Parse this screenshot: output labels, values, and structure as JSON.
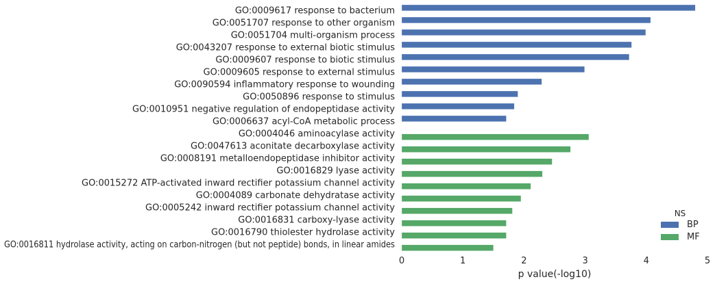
{
  "chart_data": {
    "type": "bar",
    "orientation": "horizontal",
    "categories": [
      "GO:0009617 response to bacterium",
      "GO:0051707 response to other organism",
      "GO:0051704 multi-organism process",
      "GO:0043207 response to external biotic stimulus",
      "GO:0009607 response to biotic stimulus",
      "GO:0009605 response to external stimulus",
      "GO:0090594 inflammatory response to wounding",
      "GO:0050896 response to stimulus",
      "GO:0010951 negative regulation of endopeptidase activity",
      "GO:0006637 acyl-CoA metabolic process",
      "GO:0004046 aminoacylase activity",
      "GO:0047613 aconitate decarboxylase activity",
      "GO:0008191 metalloendopeptidase inhibitor activity",
      "GO:0016829 lyase activity",
      "GO:0015272 ATP-activated inward rectifier potassium channel activity",
      "GO:0004089 carbonate dehydratase activity",
      "GO:0005242 inward rectifier potassium channel activity",
      "GO:0016831 carboxy-lyase activity",
      "GO:0016790 thiolester hydrolase activity",
      "GO:0016811 hydrolase activity, acting on carbon-nitrogen (but not peptide) bonds, in linear amides"
    ],
    "values": [
      4.8,
      4.07,
      3.99,
      3.76,
      3.72,
      2.99,
      2.29,
      1.9,
      1.84,
      1.71,
      3.06,
      2.76,
      2.46,
      2.3,
      2.11,
      1.95,
      1.81,
      1.71,
      1.71,
      1.5
    ],
    "groups": [
      "BP",
      "BP",
      "BP",
      "BP",
      "BP",
      "BP",
      "BP",
      "BP",
      "BP",
      "BP",
      "MF",
      "MF",
      "MF",
      "MF",
      "MF",
      "MF",
      "MF",
      "MF",
      "MF",
      "MF"
    ],
    "series": [
      {
        "name": "BP",
        "color": "#4c72b0"
      },
      {
        "name": "MF",
        "color": "#55a868"
      }
    ],
    "xlabel": "p value(-log10)",
    "ylabel": "",
    "xlim": [
      0,
      5
    ],
    "xticks": [
      "0",
      "1",
      "2",
      "3",
      "4",
      "5"
    ],
    "legend": {
      "title": "NS",
      "placement": "bottom-right"
    },
    "grid": false
  }
}
